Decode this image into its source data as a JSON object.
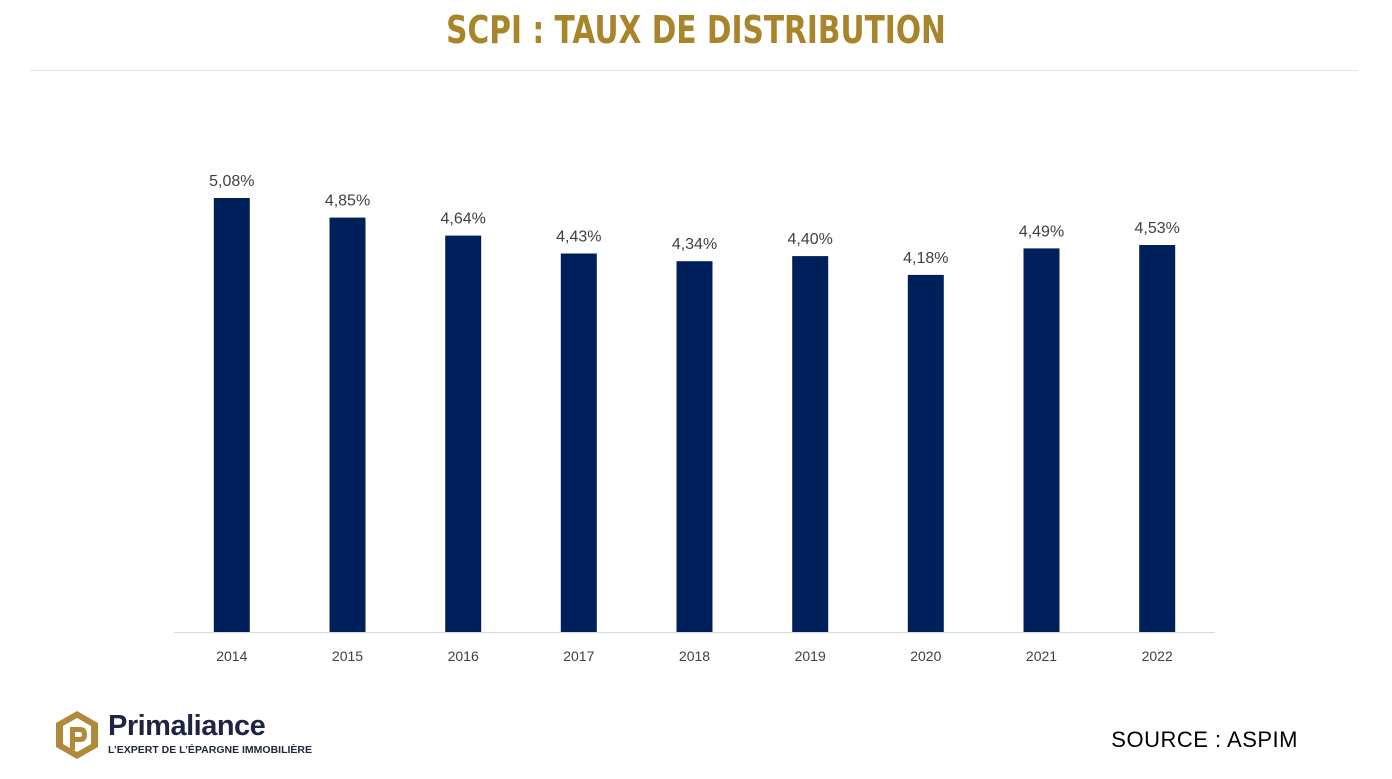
{
  "title": "SCPI : TAUX DE DISTRIBUTION",
  "source": "SOURCE : ASPIM",
  "logo": {
    "name": "Primaliance",
    "tagline": "L’EXPERT DE L’ÉPARGNE IMMOBILIÈRE"
  },
  "colors": {
    "bar": "#00205b",
    "title": "#a8852b",
    "logo_gold": "#b08a3a",
    "logo_navy": "#1f2540"
  },
  "chart_data": {
    "type": "bar",
    "title": "SCPI : TAUX DE DISTRIBUTION",
    "categories": [
      "2014",
      "2015",
      "2016",
      "2017",
      "2018",
      "2019",
      "2020",
      "2021",
      "2022"
    ],
    "values": [
      5.08,
      4.85,
      4.64,
      4.43,
      4.34,
      4.4,
      4.18,
      4.49,
      4.53
    ],
    "value_labels": [
      "5,08%",
      "4,85%",
      "4,64%",
      "4,43%",
      "4,34%",
      "4,40%",
      "4,18%",
      "4,49%",
      "4,53%"
    ],
    "unit": "%",
    "xlabel": "",
    "ylabel": "",
    "ylim": [
      0,
      5.08
    ],
    "grid": false,
    "legend": "none"
  }
}
